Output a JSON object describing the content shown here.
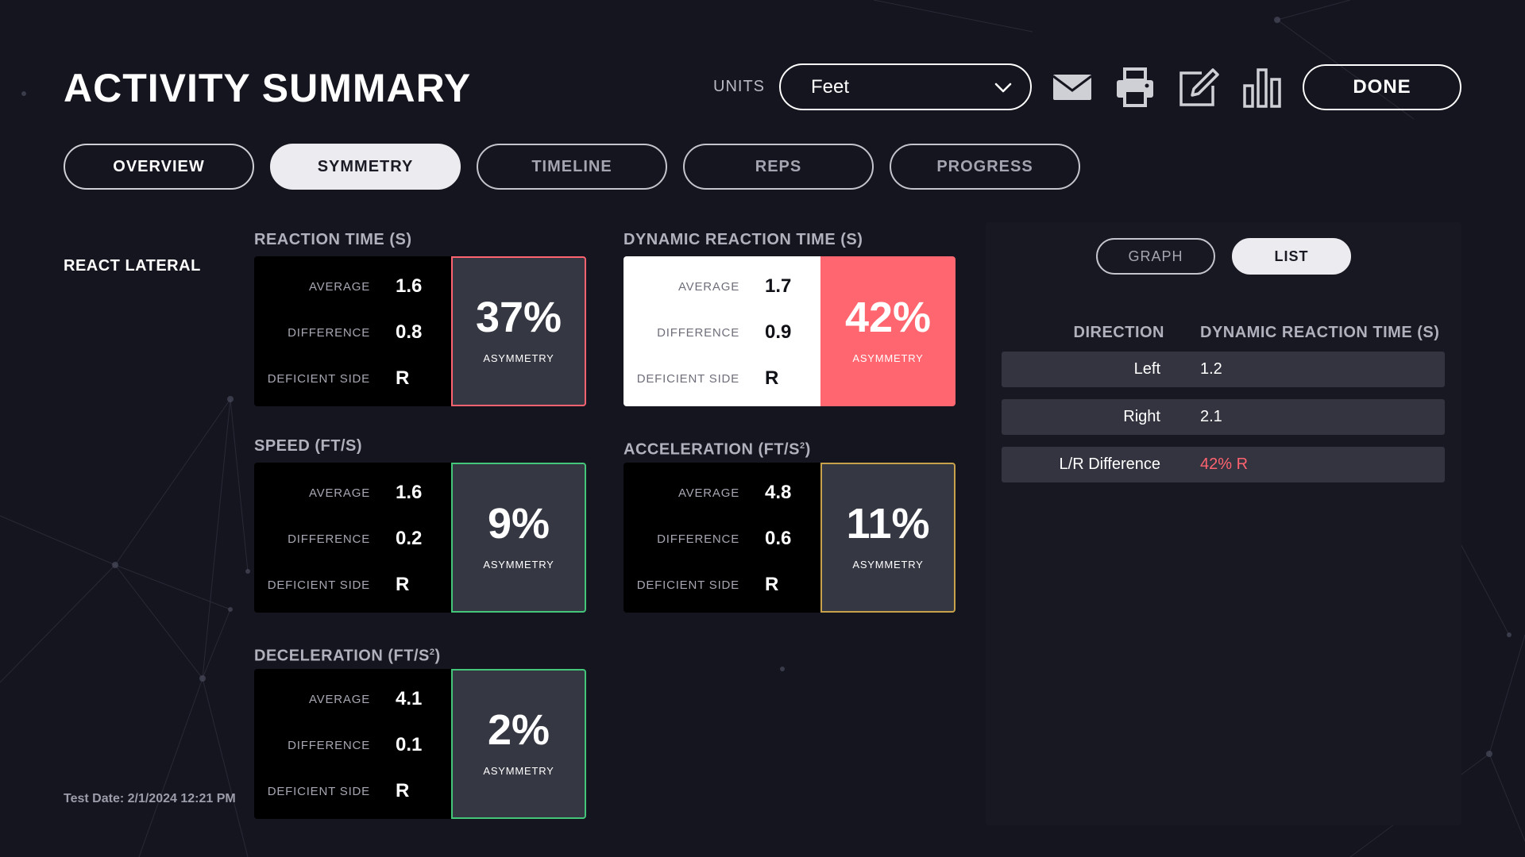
{
  "header": {
    "title": "ACTIVITY SUMMARY",
    "units_label": "UNITS",
    "units_value": "Feet",
    "done_label": "DONE",
    "icons": [
      "mail-icon",
      "print-icon",
      "edit-icon",
      "bar-chart-icon",
      "chevron-down-icon"
    ]
  },
  "tabs": [
    {
      "label": "OVERVIEW",
      "active": false
    },
    {
      "label": "SYMMETRY",
      "active": true
    },
    {
      "label": "TIMELINE",
      "active": false
    },
    {
      "label": "REPS",
      "active": false
    },
    {
      "label": "PROGRESS",
      "active": false
    }
  ],
  "section": {
    "label": "REACT LATERAL",
    "test_date": "Test Date: 2/1/2024 12:21 PM"
  },
  "stat_labels": {
    "average": "AVERAGE",
    "difference": "DIFFERENCE",
    "deficient_side": "DEFICIENT SIDE",
    "asymmetry": "ASYMMETRY"
  },
  "metrics": {
    "reaction_time": {
      "title": "REACTION TIME (S)",
      "average": "1.6",
      "difference": "0.8",
      "deficient_side": "R",
      "asymmetry": "37%",
      "status_color": "#ff6370"
    },
    "dynamic_reaction_time": {
      "title": "DYNAMIC REACTION TIME (S)",
      "average": "1.7",
      "difference": "0.9",
      "deficient_side": "R",
      "asymmetry": "42%",
      "status_color": "#ff6670"
    },
    "speed": {
      "title": "SPEED (FT/S)",
      "average": "1.6",
      "difference": "0.2",
      "deficient_side": "R",
      "asymmetry": "9%",
      "status_color": "#43c67a"
    },
    "acceleration": {
      "title": "ACCELERATION (FT/S",
      "title_sup": "2",
      "title_end": ")",
      "average": "4.8",
      "difference": "0.6",
      "deficient_side": "R",
      "asymmetry": "11%",
      "status_color": "#c8a24a"
    },
    "deceleration": {
      "title": "DECELERATION (FT/S",
      "title_sup": "2",
      "title_end": ")",
      "average": "4.1",
      "difference": "0.1",
      "deficient_side": "R",
      "asymmetry": "2%",
      "status_color": "#43c67a"
    }
  },
  "right_panel": {
    "toggle_graph": "GRAPH",
    "toggle_list": "LIST",
    "active_view": "LIST",
    "columns": [
      "DIRECTION",
      "DYNAMIC REACTION TIME (S)"
    ],
    "rows": [
      {
        "direction": "Left",
        "value": "1.2"
      },
      {
        "direction": "Right",
        "value": "2.1"
      },
      {
        "direction": "L/R Difference",
        "value": "42% R",
        "highlight_color": "#ff6370"
      }
    ]
  }
}
